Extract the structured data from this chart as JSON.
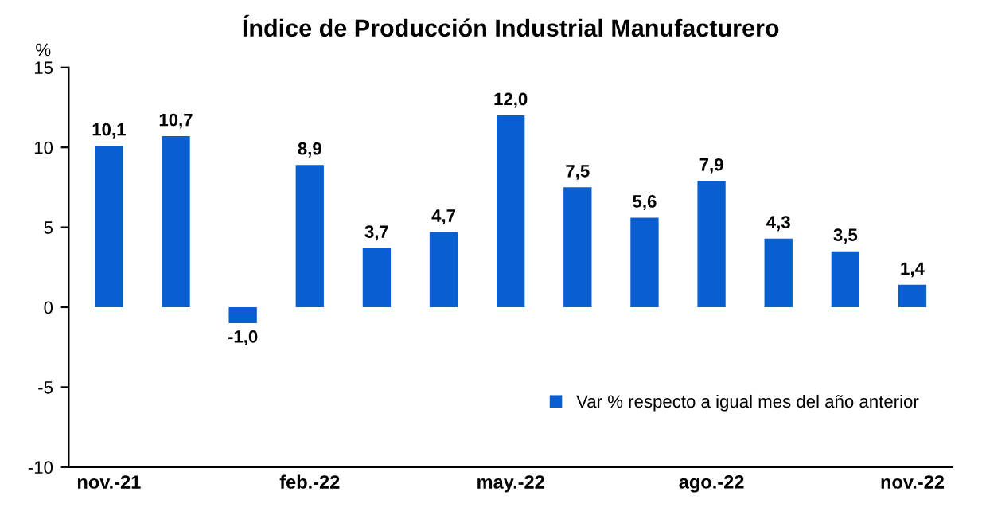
{
  "chart_data": {
    "type": "bar",
    "title": "Índice de Producción Industrial Manufacturero",
    "ylabel": "%",
    "categories": [
      "nov.-21",
      null,
      null,
      "feb.-22",
      null,
      null,
      "may.-22",
      null,
      null,
      "ago.-22",
      null,
      null,
      "nov.-22"
    ],
    "series": [
      {
        "name": "Var % respecto a igual mes del año anterior",
        "color": "#0a5fd0",
        "values": [
          10.1,
          10.7,
          -1.0,
          8.9,
          3.7,
          4.7,
          12.0,
          7.5,
          5.6,
          7.9,
          4.3,
          3.5,
          1.4
        ],
        "value_labels": [
          "10,1",
          "10,7",
          "-1,0",
          "8,9",
          "3,7",
          "4,7",
          "12,0",
          "7,5",
          "5,6",
          "7,9",
          "4,3",
          "3,5",
          "1,4"
        ]
      }
    ],
    "ylim": [
      -10,
      15
    ],
    "yticks": [
      -10,
      -5,
      0,
      5,
      10,
      15
    ],
    "grid": false,
    "legend": "bottom right"
  }
}
